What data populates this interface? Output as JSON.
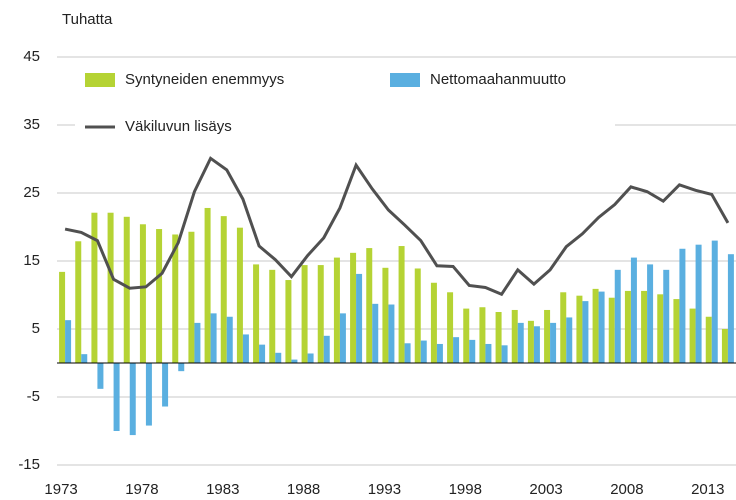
{
  "chart_data": {
    "type": "bar_line",
    "y_axis_label": "Tuhatta",
    "categories": [
      "1973",
      null,
      null,
      null,
      null,
      "1978",
      null,
      null,
      null,
      null,
      "1983",
      null,
      null,
      null,
      null,
      "1988",
      null,
      null,
      null,
      null,
      "1993",
      null,
      null,
      null,
      null,
      "1998",
      null,
      null,
      null,
      null,
      "2003",
      null,
      null,
      null,
      null,
      "2008",
      null,
      null,
      null,
      null,
      "2013",
      null
    ],
    "series": [
      {
        "name": "Syntyneiden enemmyys",
        "kind": "bar",
        "color": "#b5d334",
        "values": [
          13.4,
          17.9,
          22.1,
          22.1,
          21.5,
          20.4,
          19.7,
          18.9,
          19.3,
          22.8,
          21.6,
          19.9,
          14.5,
          13.7,
          12.2,
          14.4,
          14.4,
          15.5,
          16.2,
          16.9,
          14.0,
          17.2,
          13.9,
          11.8,
          10.4,
          8.0,
          8.2,
          7.5,
          7.8,
          6.2,
          7.8,
          10.4,
          9.9,
          10.9,
          9.6,
          10.6,
          10.6,
          10.1,
          9.4,
          8.0,
          6.8,
          5.0
        ]
      },
      {
        "name": "Nettomaahanmuutto",
        "kind": "bar",
        "color": "#5aafe0",
        "values": [
          6.3,
          1.3,
          -3.8,
          -10.0,
          -10.6,
          -9.2,
          -6.4,
          -1.2,
          5.9,
          7.3,
          6.8,
          4.2,
          2.7,
          1.5,
          0.5,
          1.4,
          4.0,
          7.3,
          13.1,
          8.7,
          8.6,
          2.9,
          3.3,
          2.8,
          3.8,
          3.4,
          2.8,
          2.6,
          5.9,
          5.4,
          5.9,
          6.7,
          9.1,
          10.5,
          13.7,
          15.5,
          14.5,
          13.7,
          16.8,
          17.4,
          18.0,
          16.0
        ]
      },
      {
        "name": "Väkiluvun lisäys",
        "kind": "line",
        "color": "#505050",
        "values": [
          19.7,
          19.2,
          18.0,
          12.3,
          11.0,
          11.2,
          13.2,
          17.7,
          25.2,
          30.1,
          28.4,
          24.1,
          17.2,
          15.2,
          12.7,
          15.8,
          18.4,
          22.8,
          29.1,
          25.6,
          22.5,
          20.3,
          18.0,
          14.3,
          14.2,
          11.4,
          11.1,
          10.1,
          13.7,
          11.6,
          13.7,
          17.1,
          19.0,
          21.4,
          23.3,
          25.9,
          25.2,
          23.8,
          26.2,
          25.4,
          24.8,
          20.6
        ]
      }
    ],
    "ylim": [
      -15,
      45
    ],
    "yticks": [
      -15,
      -5,
      5,
      15,
      25,
      35,
      45
    ],
    "grid": true,
    "legend": "top-left"
  }
}
